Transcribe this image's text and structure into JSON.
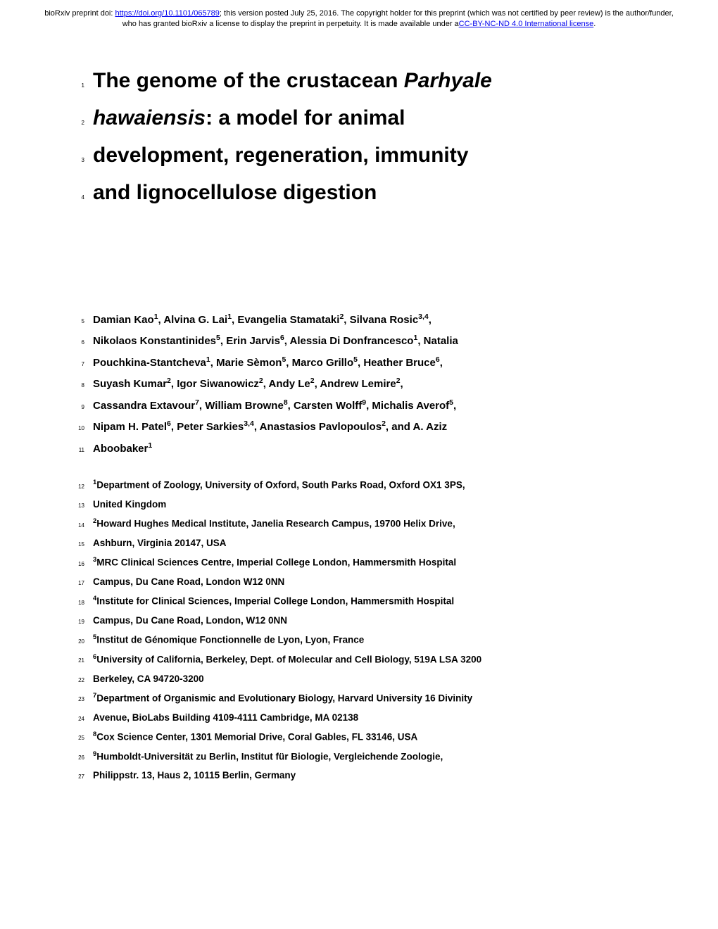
{
  "header": {
    "prefix": "bioRxiv preprint doi: ",
    "doi_url": "https://doi.org/10.1101/065789",
    "mid": "; this version posted July 25, 2016. The copyright holder for this preprint (which was not certified by peer review) is the author/funder, who has granted bioRxiv a license to display the preprint in perpetuity. It is made available under ",
    "license_prefix": "a",
    "license": "CC-BY-NC-ND 4.0 International license",
    "suffix": "."
  },
  "title": {
    "line1_prefix": "The genome of the crustacean ",
    "line1_italic": "Parhyale",
    "line2_italic": "hawaiensis",
    "line2_rest": ": a model for animal",
    "line3": "development, regeneration, immunity",
    "line4": "and lignocellulose digestion"
  },
  "line_nums": {
    "t1": "1",
    "t2": "2",
    "t3": "3",
    "t4": "4",
    "a5": "5",
    "a6": "6",
    "a7": "7",
    "a8": "8",
    "a9": "9",
    "a10": "10",
    "a11": "11",
    "f12": "12",
    "f13": "13",
    "f14": "14",
    "f15": "15",
    "f16": "16",
    "f17": "17",
    "f18": "18",
    "f19": "19",
    "f20": "20",
    "f21": "21",
    "f22": "22",
    "f23": "23",
    "f24": "24",
    "f25": "25",
    "f26": "26",
    "f27": "27"
  },
  "authors": {
    "l5": {
      "p1": "Damian Kao",
      "s1": "1",
      "p2": ", Alvina G. Lai",
      "s2": "1",
      "p3": ", Evangelia Stamataki",
      "s3": "2",
      "p4": ", Silvana Rosic",
      "s4": "3,4",
      "p5": ","
    },
    "l6": {
      "p1": "Nikolaos Konstantinides",
      "s1": "5",
      "p2": ", Erin Jarvis",
      "s2": "6",
      "p3": ", Alessia Di Donfrancesco",
      "s3": "1",
      "p4": ", Natalia"
    },
    "l7": {
      "p1": "Pouchkina-Stantcheva",
      "s1": "1",
      "p2": ", Marie Sèmon",
      "s2": "5",
      "p3": ", Marco Grillo",
      "s3": "5",
      "p4": ", Heather Bruce",
      "s4": "6",
      "p5": ","
    },
    "l8": {
      "p1": "Suyash Kumar",
      "s1": "2",
      "p2": ", Igor Siwanowicz",
      "s2": "2",
      "p3": ", Andy Le",
      "s3": "2",
      "p4": ", Andrew Lemire",
      "s4": "2",
      "p5": ","
    },
    "l9": {
      "p1": "Cassandra Extavour",
      "s1": "7",
      "p2": ", William Browne",
      "s2": "8",
      "p3": ", Carsten Wolff",
      "s3": "9",
      "p4": ", Michalis Averof",
      "s4": "5",
      "p5": ","
    },
    "l10": {
      "p1": "Nipam H. Patel",
      "s1": "6",
      "p2": ", Peter Sarkies",
      "s2": "3,4",
      "p3": ", Anastasios Pavlopoulos",
      "s3": "2",
      "p4": ", and A. Aziz"
    },
    "l11": {
      "p1": "Aboobaker",
      "s1": "1"
    }
  },
  "affiliations": {
    "l12": {
      "sup": "1",
      "text": "Department of Zoology, University of Oxford, South Parks Road, Oxford OX1 3PS,"
    },
    "l13": {
      "text": "United Kingdom"
    },
    "l14": {
      "sup": "2",
      "text": "Howard Hughes Medical Institute, Janelia Research Campus, 19700 Helix Drive,"
    },
    "l15": {
      "text": "Ashburn, Virginia 20147, USA"
    },
    "l16": {
      "sup": "3",
      "text": "MRC Clinical Sciences Centre, Imperial College London, Hammersmith Hospital"
    },
    "l17": {
      "text": "Campus, Du Cane Road, London W12 0NN"
    },
    "l18": {
      "sup": "4",
      "text": "Institute for Clinical Sciences, Imperial College London, Hammersmith Hospital"
    },
    "l19": {
      "text": "Campus, Du Cane Road, London, W12 0NN"
    },
    "l20": {
      "sup": "5",
      "text": "Institut de Génomique Fonctionnelle de Lyon, Lyon, France"
    },
    "l21": {
      "sup": "6",
      "text": "University of California, Berkeley, Dept. of Molecular and Cell Biology, 519A LSA 3200"
    },
    "l22": {
      "text": "Berkeley, CA 94720-3200"
    },
    "l23": {
      "sup": "7",
      "text": "Department of Organismic and Evolutionary Biology, Harvard University 16 Divinity"
    },
    "l24": {
      "text": "Avenue, BioLabs Building 4109-4111 Cambridge, MA 02138"
    },
    "l25": {
      "sup": "8",
      "text": "Cox Science Center, 1301 Memorial Drive, Coral Gables, FL 33146, USA"
    },
    "l26": {
      "sup": "9",
      "text": "Humboldt-Universität zu Berlin, Institut für Biologie, Vergleichende Zoologie,"
    },
    "l27": {
      "text": "Philippstr. 13, Haus 2, 10115 Berlin, Germany"
    }
  }
}
